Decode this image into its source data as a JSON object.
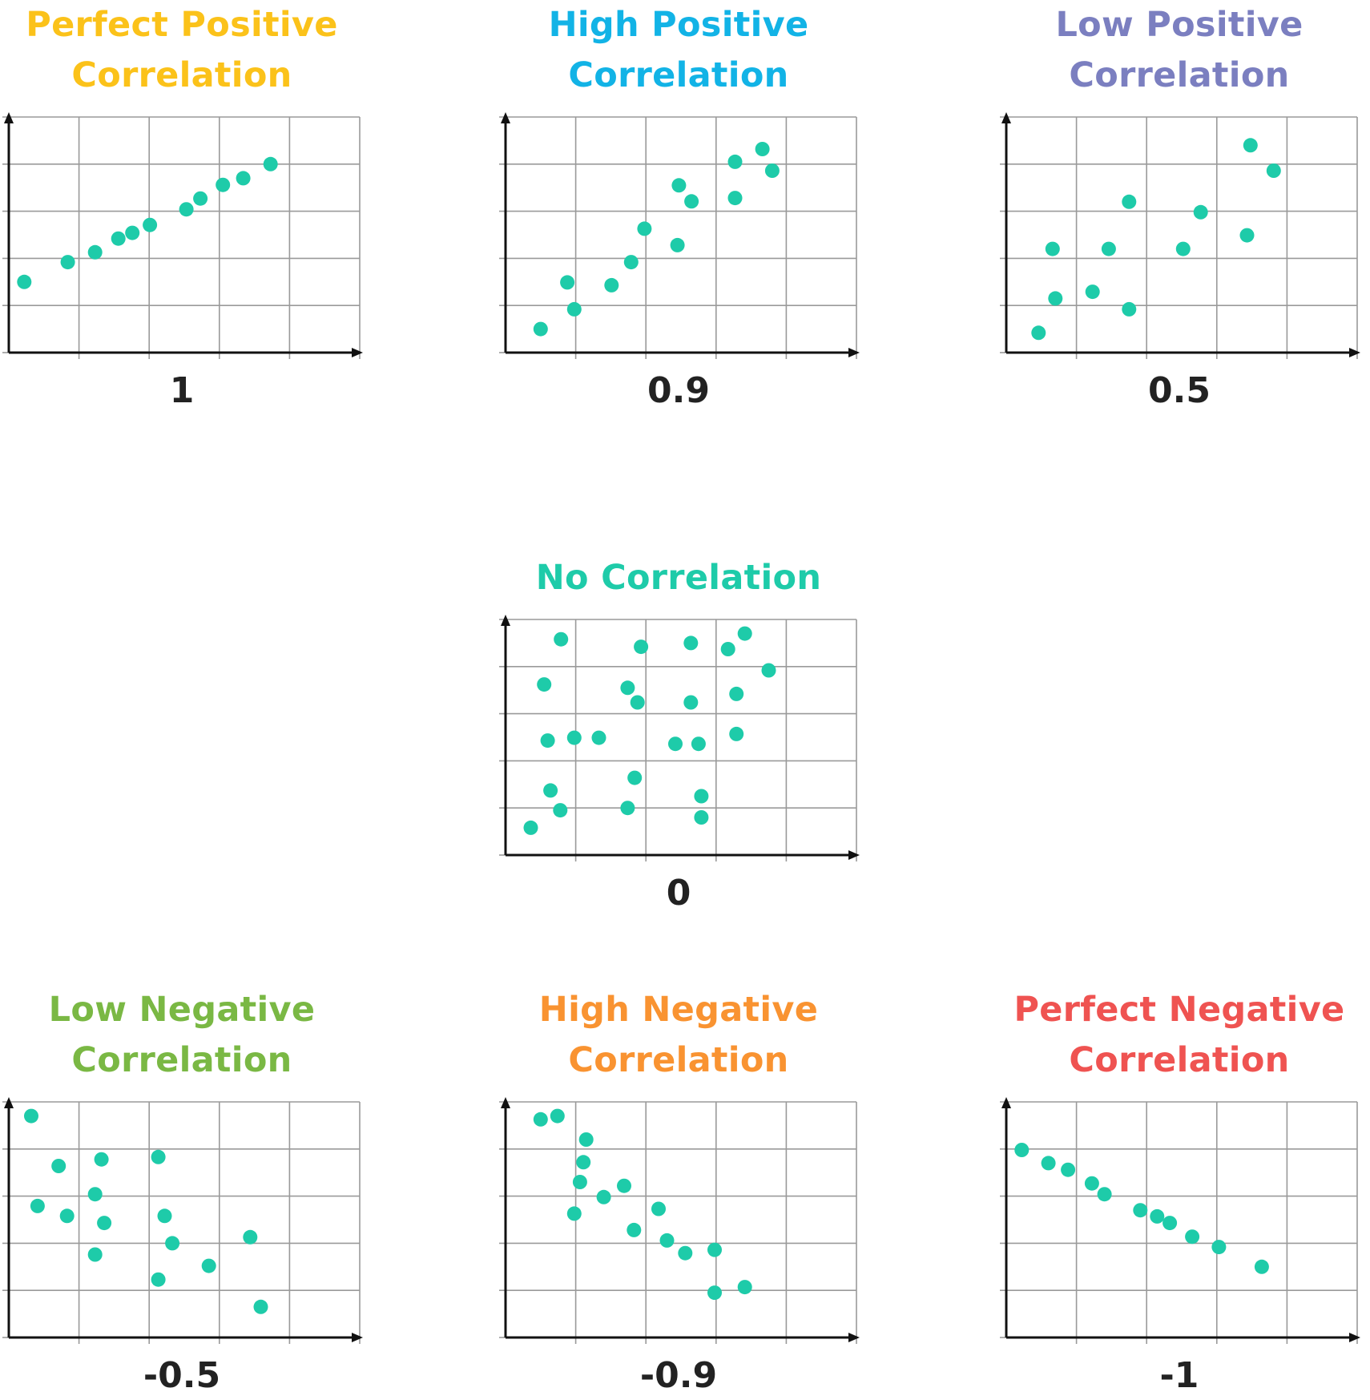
{
  "point_color": "#1ecba9",
  "chart_data": [
    {
      "type": "scatter",
      "title": "Perfect Positive Correlation",
      "title_color": "#fbc21a",
      "value_label": "1",
      "xlim": [
        0,
        5
      ],
      "ylim": [
        0,
        5
      ],
      "x": [
        0.22,
        0.84,
        1.23,
        1.56,
        1.76,
        2.01,
        2.53,
        2.73,
        3.05,
        3.34,
        3.73
      ],
      "y": [
        1.5,
        1.92,
        2.13,
        2.42,
        2.54,
        2.71,
        3.04,
        3.27,
        3.56,
        3.7,
        4.0
      ]
    },
    {
      "type": "scatter",
      "title": "High Positive Correlation",
      "title_color": "#12b3e6",
      "value_label": "0.9",
      "xlim": [
        0,
        5
      ],
      "ylim": [
        0,
        5
      ],
      "x": [
        0.5,
        0.88,
        0.98,
        1.51,
        1.79,
        1.98,
        2.45,
        2.47,
        2.65,
        3.27,
        3.27,
        3.66,
        3.8
      ],
      "y": [
        0.5,
        1.49,
        0.92,
        1.43,
        1.92,
        2.63,
        2.28,
        3.55,
        3.21,
        3.28,
        4.05,
        4.32,
        3.86
      ]
    },
    {
      "type": "scatter",
      "title": "Low Positive Correlation",
      "title_color": "#7b7fc0",
      "value_label": "0.5",
      "xlim": [
        0,
        5
      ],
      "ylim": [
        0,
        5
      ],
      "x": [
        0.46,
        0.66,
        0.7,
        1.23,
        1.46,
        1.75,
        1.75,
        2.52,
        2.77,
        3.43,
        3.48,
        3.81
      ],
      "y": [
        0.42,
        2.2,
        1.15,
        1.29,
        2.2,
        0.92,
        3.2,
        2.2,
        2.98,
        2.49,
        4.4,
        3.86
      ]
    },
    {
      "type": "scatter",
      "title": "No Correlation",
      "title_color": "#1ecba9",
      "value_label": "0",
      "xlim": [
        0,
        5
      ],
      "ylim": [
        0,
        5
      ],
      "x": [
        0.36,
        0.55,
        0.6,
        0.64,
        0.78,
        0.79,
        0.98,
        1.33,
        1.74,
        1.74,
        1.84,
        1.88,
        1.93,
        2.42,
        2.64,
        2.64,
        2.75,
        2.79,
        2.79,
        3.17,
        3.29,
        3.29,
        3.41,
        3.75
      ],
      "y": [
        0.58,
        3.62,
        2.43,
        1.37,
        0.95,
        4.58,
        2.49,
        2.49,
        3.55,
        1.0,
        1.64,
        3.24,
        4.42,
        2.36,
        3.24,
        4.5,
        2.36,
        1.25,
        0.8,
        4.37,
        3.42,
        2.57,
        4.7,
        3.92
      ]
    },
    {
      "type": "scatter",
      "title": "Low Negative Correlation",
      "title_color": "#7ab844",
      "value_label": "-0.5",
      "xlim": [
        0,
        5
      ],
      "ylim": [
        0,
        5
      ],
      "x": [
        0.32,
        0.41,
        0.71,
        0.83,
        1.23,
        1.23,
        1.32,
        1.36,
        2.13,
        2.13,
        2.22,
        2.33,
        2.85,
        3.44,
        3.59
      ],
      "y": [
        4.7,
        2.79,
        3.64,
        2.58,
        3.04,
        1.76,
        3.78,
        2.43,
        1.23,
        3.83,
        2.58,
        2.0,
        1.52,
        2.13,
        0.65
      ]
    },
    {
      "type": "scatter",
      "title": "High Negative Correlation",
      "title_color": "#f99331",
      "value_label": "-0.9",
      "xlim": [
        0,
        5
      ],
      "ylim": [
        0,
        5
      ],
      "x": [
        0.5,
        0.74,
        0.98,
        1.06,
        1.11,
        1.15,
        1.4,
        1.69,
        1.83,
        2.18,
        2.3,
        2.56,
        2.98,
        2.98,
        3.41
      ],
      "y": [
        4.63,
        4.7,
        2.63,
        3.3,
        3.72,
        4.2,
        2.98,
        3.22,
        2.28,
        2.73,
        2.06,
        1.79,
        0.95,
        1.86,
        1.07
      ]
    },
    {
      "type": "scatter",
      "title": "Perfect Negative Correlation",
      "title_color": "#ef5351",
      "value_label": "-1",
      "xlim": [
        0,
        5
      ],
      "ylim": [
        0,
        5
      ],
      "x": [
        0.22,
        0.6,
        0.88,
        1.22,
        1.4,
        1.91,
        2.15,
        2.33,
        2.65,
        3.03,
        3.64
      ],
      "y": [
        3.98,
        3.7,
        3.56,
        3.27,
        3.04,
        2.7,
        2.57,
        2.43,
        2.14,
        1.92,
        1.5
      ]
    }
  ]
}
